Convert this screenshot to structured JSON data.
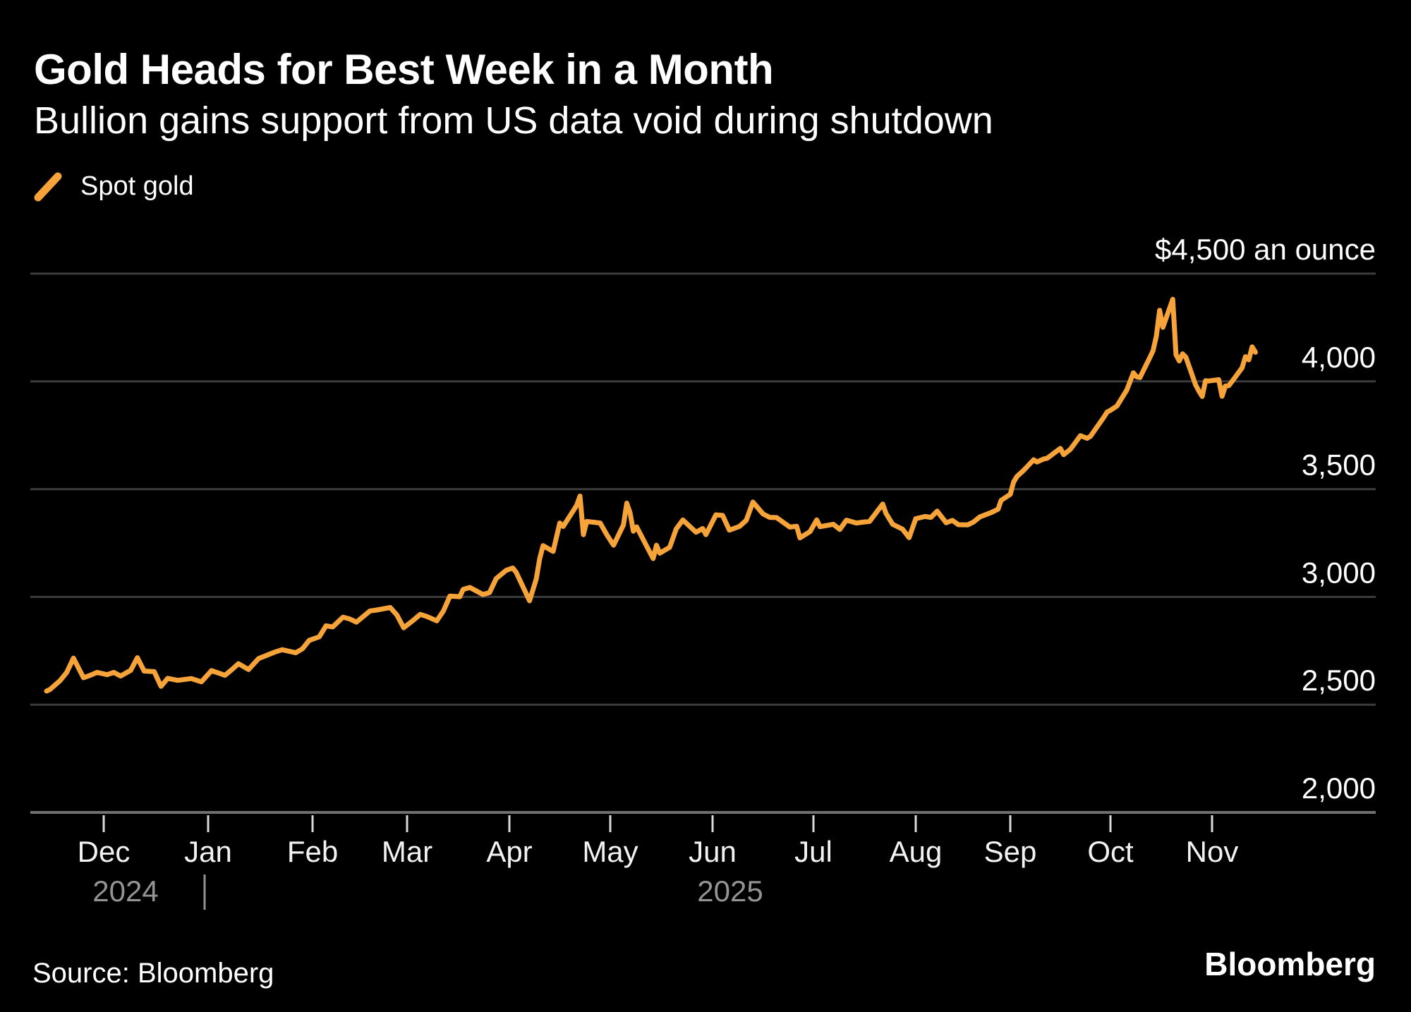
{
  "header": {
    "title": "Gold Heads for Best Week in a Month",
    "subtitle": "Bullion gains support from US data void during shutdown"
  },
  "legend": {
    "label": "Spot gold",
    "swatch_icon": "orange-slash-icon"
  },
  "source": {
    "text": "Source: Bloomberg"
  },
  "brand": {
    "text": "Bloomberg"
  },
  "colors": {
    "background": "#000000",
    "accent": "#F6A43A",
    "grid": "#3C3C3C",
    "axis": "#6F6F6F",
    "tick": "#D9D9D9",
    "axis_label": "#F2F2F2",
    "year_label": "#949494",
    "value_label": "#FFFFFF"
  },
  "chart_data": {
    "type": "line",
    "title": "Gold Heads for Best Week in a Month",
    "subtitle": "Bullion gains support from US data void during shutdown",
    "unit_top_label": "$4,500 an ounce",
    "grid": true,
    "legend_position": "top-left",
    "ylim": [
      2000,
      4500
    ],
    "y_ticks": [
      {
        "value": 4000,
        "label": "4,000"
      },
      {
        "value": 3500,
        "label": "3,500"
      },
      {
        "value": 3000,
        "label": "3,000"
      },
      {
        "value": 2500,
        "label": "2,500"
      },
      {
        "value": 2000,
        "label": "2,000"
      }
    ],
    "y_gridline_values": [
      4500,
      4000,
      3500,
      3000,
      2500
    ],
    "x_axis": {
      "month_labels": [
        "Dec",
        "Jan",
        "Feb",
        "Mar",
        "Apr",
        "May",
        "Jun",
        "Jul",
        "Aug",
        "Sep",
        "Oct",
        "Nov"
      ],
      "year_labels": [
        {
          "text": "2024"
        },
        {
          "text": "2025"
        }
      ],
      "range": [
        "2024-11-14",
        "2025-11-14"
      ]
    },
    "series": [
      {
        "name": "Spot gold",
        "color": "#F6A43A",
        "unit": "USD per ounce",
        "points": [
          [
            "2024-11-14",
            2563
          ],
          [
            "2024-11-15",
            2570
          ],
          [
            "2024-11-18",
            2611
          ],
          [
            "2024-11-20",
            2650
          ],
          [
            "2024-11-22",
            2716
          ],
          [
            "2024-11-25",
            2625
          ],
          [
            "2024-11-27",
            2636
          ],
          [
            "2024-11-29",
            2650
          ],
          [
            "2024-12-02",
            2639
          ],
          [
            "2024-12-04",
            2650
          ],
          [
            "2024-12-06",
            2633
          ],
          [
            "2024-12-09",
            2659
          ],
          [
            "2024-12-11",
            2718
          ],
          [
            "2024-12-13",
            2656
          ],
          [
            "2024-12-16",
            2653
          ],
          [
            "2024-12-18",
            2585
          ],
          [
            "2024-12-20",
            2622
          ],
          [
            "2024-12-23",
            2613
          ],
          [
            "2024-12-27",
            2621
          ],
          [
            "2024-12-30",
            2606
          ],
          [
            "2025-01-02",
            2658
          ],
          [
            "2025-01-06",
            2636
          ],
          [
            "2025-01-08",
            2662
          ],
          [
            "2025-01-10",
            2690
          ],
          [
            "2025-01-13",
            2663
          ],
          [
            "2025-01-16",
            2714
          ],
          [
            "2025-01-21",
            2745
          ],
          [
            "2025-01-23",
            2755
          ],
          [
            "2025-01-27",
            2741
          ],
          [
            "2025-01-29",
            2759
          ],
          [
            "2025-01-31",
            2798
          ],
          [
            "2025-02-03",
            2815
          ],
          [
            "2025-02-05",
            2866
          ],
          [
            "2025-02-07",
            2861
          ],
          [
            "2025-02-10",
            2906
          ],
          [
            "2025-02-12",
            2898
          ],
          [
            "2025-02-14",
            2883
          ],
          [
            "2025-02-18",
            2935
          ],
          [
            "2025-02-20",
            2939
          ],
          [
            "2025-02-24",
            2951
          ],
          [
            "2025-02-26",
            2916
          ],
          [
            "2025-02-28",
            2857
          ],
          [
            "2025-03-03",
            2893
          ],
          [
            "2025-03-05",
            2919
          ],
          [
            "2025-03-07",
            2909
          ],
          [
            "2025-03-10",
            2889
          ],
          [
            "2025-03-12",
            2935
          ],
          [
            "2025-03-14",
            3004
          ],
          [
            "2025-03-17",
            3001
          ],
          [
            "2025-03-18",
            3035
          ],
          [
            "2025-03-20",
            3044
          ],
          [
            "2025-03-24",
            3011
          ],
          [
            "2025-03-26",
            3020
          ],
          [
            "2025-03-28",
            3085
          ],
          [
            "2025-03-31",
            3123
          ],
          [
            "2025-04-02",
            3134
          ],
          [
            "2025-04-03",
            3115
          ],
          [
            "2025-04-07",
            2982
          ],
          [
            "2025-04-09",
            3083
          ],
          [
            "2025-04-10",
            3176
          ],
          [
            "2025-04-11",
            3238
          ],
          [
            "2025-04-14",
            3211
          ],
          [
            "2025-04-16",
            3343
          ],
          [
            "2025-04-17",
            3327
          ],
          [
            "2025-04-21",
            3424
          ],
          [
            "2025-04-22",
            3468
          ],
          [
            "2025-04-23",
            3289
          ],
          [
            "2025-04-24",
            3350
          ],
          [
            "2025-04-28",
            3343
          ],
          [
            "2025-04-30",
            3288
          ],
          [
            "2025-05-02",
            3240
          ],
          [
            "2025-05-05",
            3334
          ],
          [
            "2025-05-06",
            3435
          ],
          [
            "2025-05-07",
            3390
          ],
          [
            "2025-05-08",
            3305
          ],
          [
            "2025-05-09",
            3325
          ],
          [
            "2025-05-12",
            3236
          ],
          [
            "2025-05-14",
            3178
          ],
          [
            "2025-05-15",
            3240
          ],
          [
            "2025-05-16",
            3203
          ],
          [
            "2025-05-19",
            3230
          ],
          [
            "2025-05-21",
            3315
          ],
          [
            "2025-05-23",
            3357
          ],
          [
            "2025-05-27",
            3300
          ],
          [
            "2025-05-29",
            3317
          ],
          [
            "2025-05-30",
            3289
          ],
          [
            "2025-06-02",
            3381
          ],
          [
            "2025-06-04",
            3378
          ],
          [
            "2025-06-06",
            3310
          ],
          [
            "2025-06-09",
            3327
          ],
          [
            "2025-06-11",
            3355
          ],
          [
            "2025-06-13",
            3440
          ],
          [
            "2025-06-16",
            3385
          ],
          [
            "2025-06-18",
            3369
          ],
          [
            "2025-06-20",
            3368
          ],
          [
            "2025-06-24",
            3324
          ],
          [
            "2025-06-26",
            3328
          ],
          [
            "2025-06-27",
            3274
          ],
          [
            "2025-06-30",
            3303
          ],
          [
            "2025-07-02",
            3357
          ],
          [
            "2025-07-03",
            3326
          ],
          [
            "2025-07-07",
            3337
          ],
          [
            "2025-07-09",
            3313
          ],
          [
            "2025-07-11",
            3356
          ],
          [
            "2025-07-14",
            3343
          ],
          [
            "2025-07-16",
            3347
          ],
          [
            "2025-07-18",
            3350
          ],
          [
            "2025-07-22",
            3431
          ],
          [
            "2025-07-23",
            3387
          ],
          [
            "2025-07-25",
            3337
          ],
          [
            "2025-07-28",
            3314
          ],
          [
            "2025-07-30",
            3275
          ],
          [
            "2025-08-01",
            3363
          ],
          [
            "2025-08-04",
            3373
          ],
          [
            "2025-08-06",
            3369
          ],
          [
            "2025-08-08",
            3398
          ],
          [
            "2025-08-11",
            3344
          ],
          [
            "2025-08-13",
            3355
          ],
          [
            "2025-08-15",
            3335
          ],
          [
            "2025-08-18",
            3334
          ],
          [
            "2025-08-20",
            3348
          ],
          [
            "2025-08-22",
            3371
          ],
          [
            "2025-08-26",
            3393
          ],
          [
            "2025-08-28",
            3407
          ],
          [
            "2025-08-29",
            3448
          ],
          [
            "2025-09-01",
            3476
          ],
          [
            "2025-09-02",
            3533
          ],
          [
            "2025-09-03",
            3559
          ],
          [
            "2025-09-05",
            3587
          ],
          [
            "2025-09-08",
            3636
          ],
          [
            "2025-09-09",
            3626
          ],
          [
            "2025-09-11",
            3640
          ],
          [
            "2025-09-12",
            3643
          ],
          [
            "2025-09-16",
            3689
          ],
          [
            "2025-09-17",
            3660
          ],
          [
            "2025-09-19",
            3685
          ],
          [
            "2025-09-22",
            3748
          ],
          [
            "2025-09-24",
            3736
          ],
          [
            "2025-09-25",
            3745
          ],
          [
            "2025-09-29",
            3833
          ],
          [
            "2025-09-30",
            3858
          ],
          [
            "2025-10-01",
            3866
          ],
          [
            "2025-10-03",
            3886
          ],
          [
            "2025-10-06",
            3960
          ],
          [
            "2025-10-08",
            4040
          ],
          [
            "2025-10-09",
            4021
          ],
          [
            "2025-10-10",
            4018
          ],
          [
            "2025-10-13",
            4110
          ],
          [
            "2025-10-14",
            4143
          ],
          [
            "2025-10-15",
            4209
          ],
          [
            "2025-10-16",
            4330
          ],
          [
            "2025-10-17",
            4251
          ],
          [
            "2025-10-20",
            4381
          ],
          [
            "2025-10-21",
            4124
          ],
          [
            "2025-10-22",
            4095
          ],
          [
            "2025-10-23",
            4128
          ],
          [
            "2025-10-24",
            4113
          ],
          [
            "2025-10-27",
            3983
          ],
          [
            "2025-10-28",
            3955
          ],
          [
            "2025-10-29",
            3930
          ],
          [
            "2025-10-30",
            4003
          ],
          [
            "2025-10-31",
            4002
          ],
          [
            "2025-11-03",
            4008
          ],
          [
            "2025-11-04",
            3931
          ],
          [
            "2025-11-05",
            3978
          ],
          [
            "2025-11-06",
            3980
          ],
          [
            "2025-11-07",
            4000
          ],
          [
            "2025-11-10",
            4063
          ],
          [
            "2025-11-11",
            4115
          ],
          [
            "2025-11-12",
            4100
          ],
          [
            "2025-11-13",
            4160
          ],
          [
            "2025-11-14",
            4135
          ]
        ]
      }
    ]
  }
}
